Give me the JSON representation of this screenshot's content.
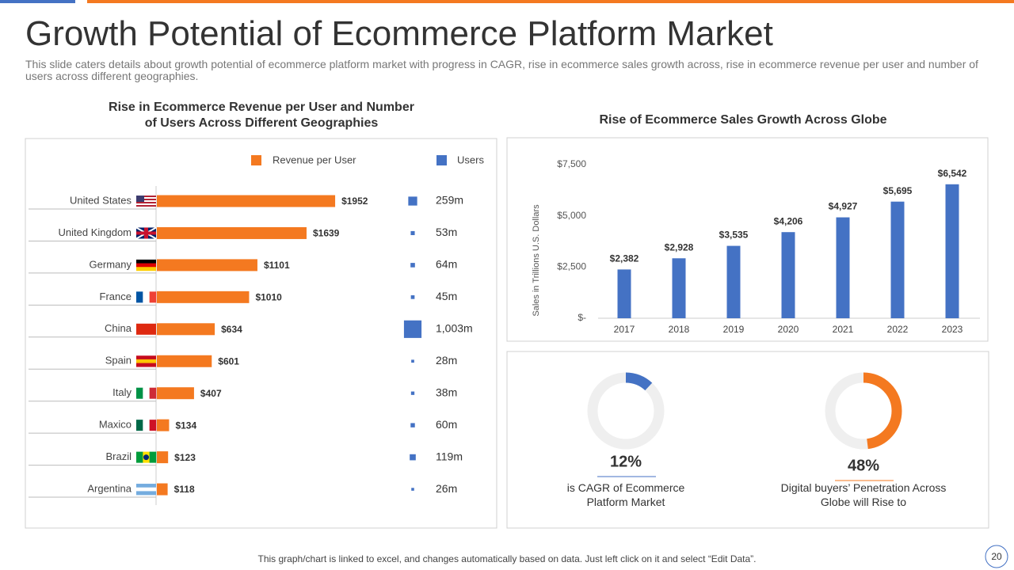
{
  "title": "Growth Potential of Ecommerce Platform Market",
  "subtitle": "This slide caters details about growth potential of ecommerce platform market with progress in CAGR, rise in ecommerce sales growth across, rise in ecommerce revenue per user and number of users across different geographies.",
  "footer": "This graph/chart is linked to excel, and changes automatically based on data. Just left click on it and select “Edit Data”.",
  "page_number": "20",
  "chart_data": [
    {
      "type": "hbar",
      "title": "Rise in Ecommerce Revenue per User and Number of Users Across Different Geographies",
      "categories": [
        "United States",
        "United Kingdom",
        "Germany",
        "France",
        "China",
        "Spain",
        "Italy",
        "Maxico",
        "Brazil",
        "Argentina"
      ],
      "series": [
        {
          "name": "Revenue  per User",
          "color": "#f47920",
          "values": [
            1952,
            1639,
            1101,
            1010,
            634,
            601,
            407,
            134,
            123,
            118
          ],
          "value_labels": [
            "$1952",
            "$1639",
            "$1101",
            "$1010",
            "$634",
            "$601",
            "$407",
            "$134",
            "$123",
            "$118"
          ]
        },
        {
          "name": "Users",
          "color": "#4472c4",
          "values": [
            259,
            53,
            64,
            45,
            1003,
            28,
            38,
            60,
            119,
            26
          ],
          "value_labels": [
            "259m",
            "53m",
            "64m",
            "45m",
            "1,003m",
            "28m",
            "38m",
            "60m",
            "119m",
            "26m"
          ]
        }
      ]
    },
    {
      "type": "bar",
      "title": "Rise of Ecommerce Sales Growth Across Globe",
      "ylabel": "Sales in Trillions U.S. Dollars",
      "categories": [
        "2017",
        "2018",
        "2019",
        "2020",
        "2021",
        "2022",
        "2023"
      ],
      "values": [
        2382,
        2928,
        3535,
        4206,
        4927,
        5695,
        6542
      ],
      "value_labels": [
        "$2,382",
        "$2,928",
        "$3,535",
        "$4,206",
        "$4,927",
        "$5,695",
        "$6,542"
      ],
      "color": "#4472c4",
      "ylim": [
        0,
        7500
      ],
      "yticks": [
        {
          "value": 0,
          "label": "$-"
        },
        {
          "value": 2500,
          "label": "$2,500"
        },
        {
          "value": 5000,
          "label": "$5,000"
        },
        {
          "value": 7500,
          "label": "$7,500"
        }
      ]
    },
    {
      "type": "donut",
      "values": [
        12
      ],
      "value_labels": [
        "12%"
      ],
      "caption": "is CAGR of Ecommerce Platform Market",
      "color": "#4472c4"
    },
    {
      "type": "donut",
      "values": [
        48
      ],
      "value_labels": [
        "48%"
      ],
      "caption": "Digital buyers’ Penetration Across Globe will Rise to",
      "color": "#f47920"
    }
  ]
}
